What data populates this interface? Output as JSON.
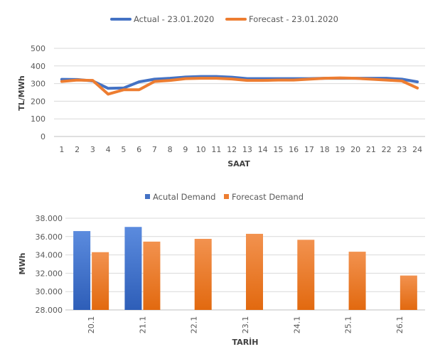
{
  "chart_data": [
    {
      "type": "line",
      "title": "",
      "legend_position": "top",
      "xlabel": "SAAT",
      "ylabel": "TL/MWh",
      "x": [
        1,
        2,
        3,
        4,
        5,
        6,
        7,
        8,
        9,
        10,
        11,
        12,
        13,
        14,
        15,
        16,
        17,
        18,
        19,
        20,
        21,
        22,
        23,
        24
      ],
      "ylim": [
        0,
        500
      ],
      "yticks": [
        "0",
        "100",
        "200",
        "300",
        "400",
        "500"
      ],
      "ytick_values": [
        0,
        100,
        200,
        300,
        400,
        500
      ],
      "series": [
        {
          "name": "Actual - 23.01.2020",
          "color": "#4472C4",
          "values": [
            324,
            323,
            315,
            273,
            275,
            310,
            325,
            330,
            337,
            340,
            340,
            336,
            328,
            328,
            328,
            328,
            328,
            330,
            330,
            330,
            330,
            330,
            325,
            310
          ]
        },
        {
          "name": "Forecast - 23.01.2020",
          "color": "#ED7D31",
          "values": [
            312,
            320,
            318,
            240,
            265,
            265,
            312,
            318,
            328,
            330,
            330,
            326,
            318,
            318,
            320,
            320,
            325,
            330,
            332,
            330,
            325,
            320,
            315,
            275
          ]
        }
      ]
    },
    {
      "type": "bar",
      "title": "",
      "legend_position": "top",
      "xlabel": "TARİH",
      "ylabel": "MWh",
      "categories": [
        "20.1",
        "21.1",
        "22.1",
        "23.1",
        "24.1",
        "25.1",
        "26.1"
      ],
      "ylim": [
        28000,
        38000
      ],
      "yticks": [
        "28.000",
        "30.000",
        "32.000",
        "34.000",
        "36.000",
        "38.000"
      ],
      "ytick_values": [
        28000,
        30000,
        32000,
        34000,
        36000,
        38000
      ],
      "series": [
        {
          "name": "Acutal Demand",
          "color": "#4472C4",
          "values": [
            36600,
            37050,
            null,
            null,
            null,
            null,
            null
          ]
        },
        {
          "name": "Forecast Demand",
          "color": "#ED7D31",
          "values": [
            34300,
            35450,
            35750,
            36300,
            35650,
            34350,
            31750
          ]
        }
      ]
    }
  ]
}
